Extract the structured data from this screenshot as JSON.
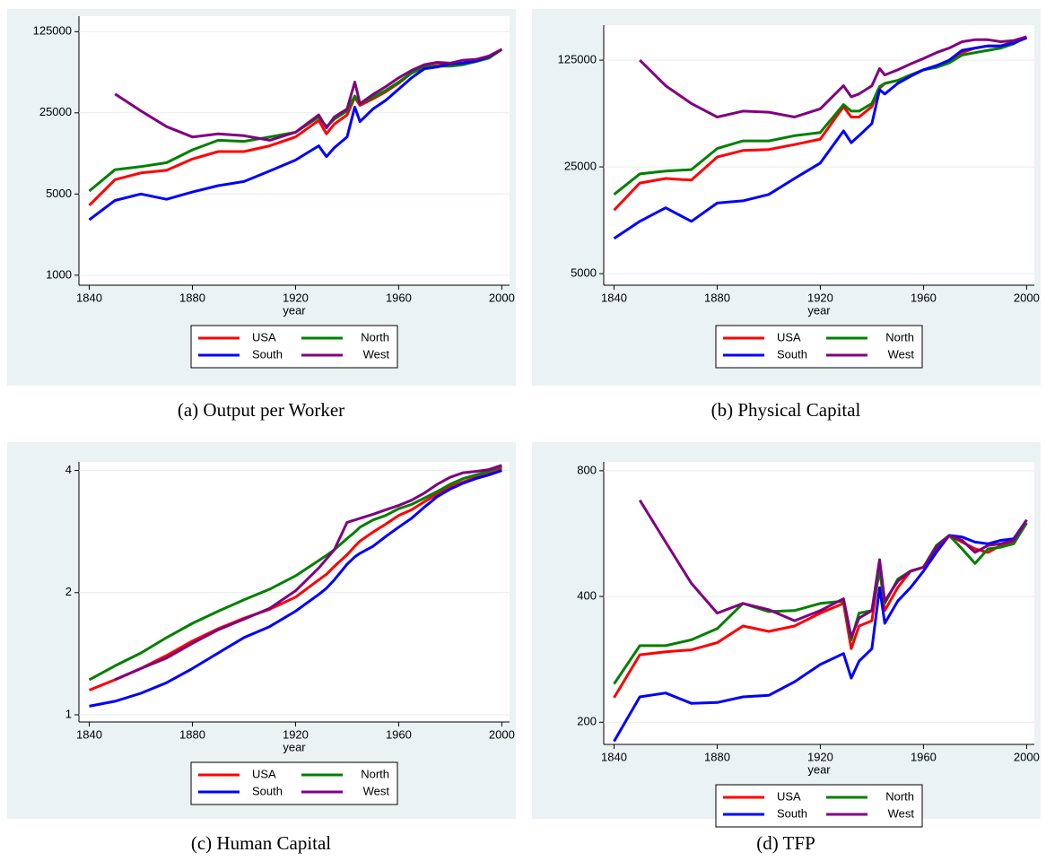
{
  "chart_data": [
    {
      "type": "line",
      "caption": "(a) Output per Worker",
      "xlabel": "year",
      "log_y": true,
      "xlim": [
        1836,
        2003
      ],
      "xticks": [
        1840,
        1880,
        1920,
        1960,
        2000
      ],
      "ylim": [
        820,
        170000
      ],
      "yticks": [
        1000,
        5000,
        25000,
        125000
      ],
      "grid": true,
      "x": [
        1840,
        1850,
        1860,
        1870,
        1880,
        1890,
        1900,
        1910,
        1920,
        1929,
        1932,
        1935,
        1940,
        1943,
        1945,
        1950,
        1955,
        1960,
        1965,
        1970,
        1975,
        1980,
        1985,
        1990,
        1995,
        2000
      ],
      "series": [
        {
          "name": "USA",
          "color": "#ff0000",
          "values": [
            4000,
            6650,
            7600,
            8000,
            10000,
            11600,
            11600,
            13000,
            15500,
            21500,
            16500,
            20000,
            24000,
            34000,
            29000,
            33000,
            38000,
            45000,
            55000,
            62000,
            64000,
            66000,
            67000,
            70000,
            75000,
            88000
          ]
        },
        {
          "name": "North",
          "color": "#008000",
          "values": [
            5300,
            8100,
            8600,
            9300,
            12000,
            14500,
            14200,
            15500,
            17000,
            23000,
            19000,
            22000,
            26000,
            35000,
            30000,
            34000,
            39000,
            46000,
            55000,
            62000,
            63000,
            63000,
            65000,
            69000,
            74000,
            88000
          ]
        },
        {
          "name": "South",
          "color": "#0000ff",
          "values": [
            3000,
            4400,
            5000,
            4500,
            5200,
            5900,
            6400,
            7900,
            9800,
            13000,
            10500,
            12500,
            15500,
            28000,
            21000,
            27000,
            32000,
            40000,
            50000,
            60000,
            62000,
            66000,
            67000,
            70000,
            76000,
            88000
          ]
        },
        {
          "name": "West",
          "color": "#800080",
          "values": [
            null,
            36400,
            26000,
            19000,
            15500,
            16500,
            15900,
            14500,
            17000,
            24000,
            18500,
            23000,
            27000,
            46000,
            30000,
            36000,
            42000,
            50000,
            58000,
            65000,
            68000,
            67000,
            71000,
            72000,
            77000,
            88000
          ]
        }
      ]
    },
    {
      "type": "line",
      "caption": "(b) Physical Capital",
      "xlabel": "year",
      "log_y": true,
      "xlim": [
        1836,
        2003
      ],
      "xticks": [
        1840,
        1880,
        1920,
        1960,
        2000
      ],
      "ylim": [
        4200,
        212000
      ],
      "yticks": [
        5000,
        25000,
        125000
      ],
      "grid": true,
      "x": [
        1840,
        1850,
        1860,
        1870,
        1880,
        1890,
        1900,
        1910,
        1920,
        1929,
        1932,
        1935,
        1940,
        1943,
        1945,
        1950,
        1955,
        1960,
        1965,
        1970,
        1975,
        1980,
        1985,
        1990,
        1995,
        2000
      ],
      "series": [
        {
          "name": "USA",
          "color": "#ff0000",
          "values": [
            13000,
            19600,
            21000,
            20500,
            29000,
            32000,
            32500,
            35000,
            38000,
            62000,
            53000,
            53000,
            62000,
            82000,
            88000,
            92000,
            100000,
            108000,
            115000,
            122000,
            140000,
            150000,
            155000,
            155000,
            165000,
            175000
          ]
        },
        {
          "name": "North",
          "color": "#008000",
          "values": [
            16500,
            22500,
            23500,
            24000,
            33000,
            37000,
            37000,
            40000,
            42000,
            64000,
            58000,
            58000,
            65000,
            84000,
            88000,
            92000,
            100000,
            108000,
            112000,
            120000,
            135000,
            140000,
            145000,
            150000,
            160000,
            178000
          ]
        },
        {
          "name": "South",
          "color": "#0000ff",
          "values": [
            8500,
            11000,
            13500,
            11000,
            14500,
            15000,
            16500,
            21000,
            26500,
            43000,
            36000,
            40000,
            48000,
            80000,
            75000,
            88000,
            98000,
            108000,
            115000,
            125000,
            145000,
            150000,
            155000,
            155000,
            162000,
            175000
          ]
        },
        {
          "name": "West",
          "color": "#800080",
          "values": [
            null,
            125000,
            85000,
            65000,
            53000,
            58000,
            57000,
            53000,
            60000,
            85000,
            72000,
            75000,
            85000,
            110000,
            100000,
            108000,
            118000,
            128000,
            140000,
            150000,
            165000,
            170000,
            170000,
            165000,
            168000,
            178000
          ]
        }
      ]
    },
    {
      "type": "line",
      "caption": "(c) Human Capital",
      "xlabel": "year",
      "log_y": true,
      "xlim": [
        1836,
        2003
      ],
      "xticks": [
        1840,
        1880,
        1920,
        1960,
        2000
      ],
      "ylim": [
        0.96,
        4.2
      ],
      "yticks": [
        1,
        2,
        4
      ],
      "grid": true,
      "x": [
        1840,
        1850,
        1860,
        1870,
        1880,
        1890,
        1900,
        1910,
        1920,
        1929,
        1932,
        1935,
        1940,
        1943,
        1945,
        1950,
        1955,
        1960,
        1965,
        1970,
        1975,
        1980,
        1985,
        1990,
        1995,
        2000
      ],
      "series": [
        {
          "name": "USA",
          "color": "#ff0000",
          "values": [
            1.15,
            1.22,
            1.3,
            1.4,
            1.52,
            1.63,
            1.73,
            1.82,
            1.95,
            2.15,
            2.22,
            2.32,
            2.48,
            2.6,
            2.68,
            2.82,
            2.95,
            3.1,
            3.2,
            3.35,
            3.5,
            3.65,
            3.75,
            3.85,
            3.95,
            4.05
          ]
        },
        {
          "name": "North",
          "color": "#008000",
          "values": [
            1.22,
            1.32,
            1.42,
            1.55,
            1.68,
            1.8,
            1.92,
            2.04,
            2.2,
            2.4,
            2.47,
            2.55,
            2.72,
            2.82,
            2.9,
            3.02,
            3.1,
            3.22,
            3.3,
            3.42,
            3.55,
            3.7,
            3.82,
            3.9,
            3.98,
            4.1
          ]
        },
        {
          "name": "South",
          "color": "#0000ff",
          "values": [
            1.05,
            1.08,
            1.13,
            1.2,
            1.3,
            1.42,
            1.55,
            1.65,
            1.8,
            1.98,
            2.05,
            2.15,
            2.35,
            2.45,
            2.5,
            2.6,
            2.75,
            2.9,
            3.05,
            3.25,
            3.45,
            3.6,
            3.72,
            3.82,
            3.9,
            4.0
          ]
        },
        {
          "name": "West",
          "color": "#800080",
          "values": [
            null,
            1.22,
            1.3,
            1.38,
            1.5,
            1.62,
            1.72,
            1.83,
            2.02,
            2.3,
            2.42,
            2.55,
            2.98,
            3.02,
            3.05,
            3.12,
            3.2,
            3.28,
            3.38,
            3.52,
            3.7,
            3.85,
            3.95,
            3.98,
            4.02,
            4.12
          ]
        }
      ]
    },
    {
      "type": "line",
      "caption": "(d) TFP",
      "xlabel": "year",
      "log_y": true,
      "xlim": [
        1836,
        2003
      ],
      "xticks": [
        1840,
        1880,
        1920,
        1960,
        2000
      ],
      "ylim": [
        177,
        840
      ],
      "yticks": [
        200,
        400,
        800
      ],
      "grid": true,
      "x": [
        1840,
        1850,
        1860,
        1870,
        1880,
        1890,
        1900,
        1910,
        1920,
        1929,
        1932,
        1935,
        1940,
        1943,
        1945,
        1950,
        1955,
        1960,
        1965,
        1970,
        1975,
        1980,
        1985,
        1990,
        1995,
        2000
      ],
      "series": [
        {
          "name": "USA",
          "color": "#ff0000",
          "values": [
            229,
            290,
            295,
            298,
            310,
            340,
            330,
            340,
            365,
            385,
            300,
            340,
            350,
            470,
            370,
            420,
            460,
            470,
            520,
            560,
            540,
            520,
            510,
            530,
            540,
            600
          ]
        },
        {
          "name": "North",
          "color": "#008000",
          "values": [
            247,
            305,
            305,
            315,
            335,
            385,
            368,
            370,
            385,
            390,
            315,
            365,
            370,
            460,
            385,
            440,
            460,
            470,
            530,
            560,
            520,
            480,
            520,
            525,
            535,
            600
          ]
        },
        {
          "name": "South",
          "color": "#0000ff",
          "values": [
            180,
            230,
            235,
            222,
            223,
            230,
            232,
            250,
            275,
            292,
            255,
            280,
            300,
            420,
            345,
            390,
            420,
            460,
            510,
            560,
            555,
            540,
            535,
            545,
            550,
            610
          ]
        },
        {
          "name": "West",
          "color": "#800080",
          "values": [
            null,
            680,
            540,
            430,
            365,
            385,
            372,
            350,
            370,
            395,
            320,
            355,
            370,
            490,
            390,
            435,
            460,
            470,
            525,
            560,
            545,
            510,
            530,
            535,
            545,
            610
          ]
        }
      ]
    }
  ]
}
